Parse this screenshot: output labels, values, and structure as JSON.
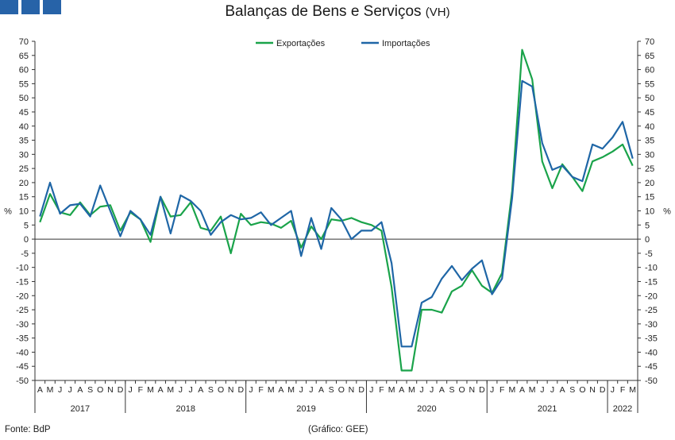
{
  "header": {
    "title": "Balanças de Bens e Serviços",
    "subtitle": "(VH)"
  },
  "footer": {
    "source": "Fonte: BdP",
    "credit": "(Gráfico: GEE)"
  },
  "chart_data": {
    "type": "line",
    "ylabel_left": "%",
    "ylabel_right": "%",
    "ylim": [
      -50,
      70
    ],
    "ytick_step": 5,
    "grid": false,
    "legend_position": "top-center",
    "months": [
      "A",
      "M",
      "J",
      "J",
      "A",
      "S",
      "O",
      "N",
      "D",
      "J",
      "F",
      "M",
      "A",
      "M",
      "J",
      "J",
      "A",
      "S",
      "O",
      "N",
      "D",
      "J",
      "F",
      "M",
      "A",
      "M",
      "J",
      "J",
      "A",
      "S",
      "O",
      "N",
      "D",
      "J",
      "F",
      "M",
      "A",
      "M",
      "J",
      "J",
      "A",
      "S",
      "O",
      "N",
      "D",
      "J",
      "F",
      "M",
      "A",
      "M",
      "J",
      "J",
      "A",
      "S",
      "O",
      "N",
      "D",
      "J",
      "F",
      "M"
    ],
    "years": [
      {
        "label": "2017",
        "start": 0,
        "end": 8
      },
      {
        "label": "2018",
        "start": 9,
        "end": 20
      },
      {
        "label": "2019",
        "start": 21,
        "end": 32
      },
      {
        "label": "2020",
        "start": 33,
        "end": 44
      },
      {
        "label": "2021",
        "start": 45,
        "end": 56
      },
      {
        "label": "2022",
        "start": 57,
        "end": 59
      }
    ],
    "series": [
      {
        "name": "Exportações",
        "color": "#1aa34a",
        "values": [
          6,
          16,
          9.5,
          8.5,
          13,
          8.5,
          11.5,
          12,
          3,
          9.5,
          7,
          -1,
          15,
          8,
          8.5,
          13,
          4,
          3,
          8,
          -5,
          9,
          5,
          6,
          5.5,
          4,
          6.5,
          -3,
          4.5,
          0,
          7,
          6.5,
          7.5,
          6,
          5,
          3,
          -17,
          -46.5,
          -46.5,
          -25,
          -25,
          -26,
          -18.5,
          -16.5,
          -11,
          -16.5,
          -19,
          -12,
          17,
          67,
          56.5,
          27.5,
          18,
          26.5,
          22,
          17,
          27.5,
          29,
          31,
          33.5,
          26
        ]
      },
      {
        "name": "Importações",
        "color": "#1f66a6",
        "values": [
          8,
          20,
          9,
          12,
          12.5,
          8,
          19,
          10,
          1,
          10,
          7,
          1.5,
          15,
          2,
          15.5,
          13.5,
          10,
          1.5,
          6,
          8.5,
          7,
          7.5,
          9.5,
          5,
          7.5,
          10,
          -6,
          7.5,
          -3.5,
          11,
          7,
          0,
          3,
          3,
          6,
          -8.5,
          -38,
          -38,
          -22.5,
          -20.5,
          -14,
          -9.5,
          -14.5,
          -10.5,
          -7.5,
          -19.5,
          -14,
          14.5,
          56,
          54,
          34,
          24.5,
          26,
          22,
          20.5,
          33.5,
          32,
          36,
          41.5,
          28.5
        ]
      }
    ]
  }
}
